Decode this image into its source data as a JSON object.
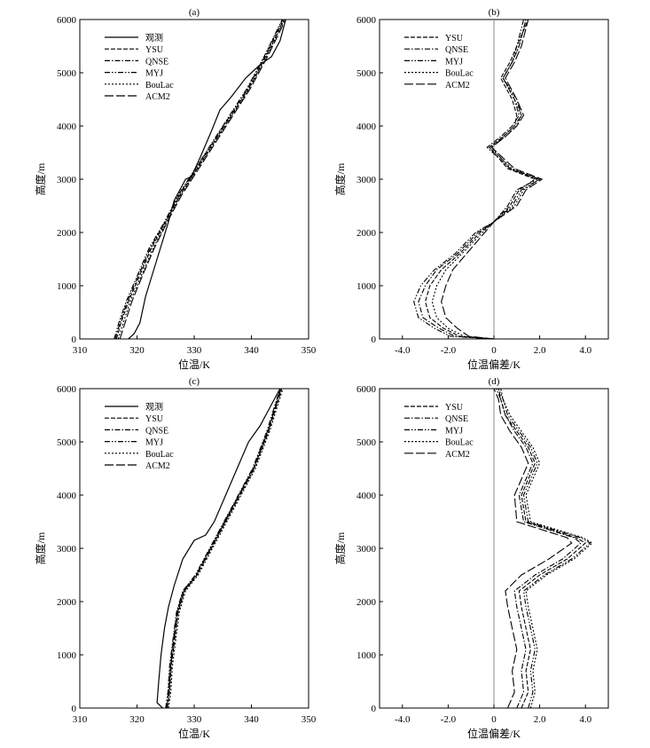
{
  "chart_data": [
    {
      "panel": "(a)",
      "type": "line",
      "xlabel": "位温/K",
      "ylabel": "高度/m",
      "xlim": [
        310,
        350
      ],
      "ylim": [
        0,
        6000
      ],
      "xticks": [
        "310",
        "320",
        "330",
        "340",
        "350"
      ],
      "yticks": [
        "0",
        "1000",
        "2000",
        "3000",
        "4000",
        "5000",
        "6000"
      ],
      "legend": "top-left",
      "series": [
        {
          "name": "观测",
          "style": "solid",
          "x": [
            318.5,
            319.5,
            320.5,
            321.5,
            323.5,
            325.5,
            326.5,
            328.0,
            328.5,
            329.5,
            331.0,
            333.0,
            334.5,
            336.5,
            339.0,
            341.5,
            343.5,
            345.0,
            346.0
          ],
          "y": [
            0,
            100,
            300,
            800,
            1500,
            2200,
            2600,
            2900,
            3000,
            3050,
            3400,
            3900,
            4300,
            4550,
            4900,
            5150,
            5300,
            5600,
            6000
          ]
        },
        {
          "name": "YSU",
          "style": "dashed",
          "x": [
            316.4,
            317.2,
            318.5,
            320.5,
            322.5,
            325.0,
            327.5,
            330.5,
            333.5,
            336.5,
            339.5,
            342.5,
            345.7
          ],
          "y": [
            0,
            300,
            700,
            1200,
            1700,
            2200,
            2700,
            3200,
            3700,
            4200,
            4700,
            5300,
            6000
          ]
        },
        {
          "name": "QNSE",
          "style": "dashdot",
          "x": [
            316.2,
            317.0,
            318.3,
            320.3,
            322.3,
            324.9,
            327.3,
            330.3,
            333.3,
            336.3,
            339.3,
            342.3,
            345.5
          ],
          "y": [
            0,
            300,
            700,
            1200,
            1700,
            2200,
            2700,
            3200,
            3700,
            4200,
            4700,
            5300,
            6000
          ]
        },
        {
          "name": "MYJ",
          "style": "dashdotdot",
          "x": [
            316.0,
            316.8,
            318.1,
            320.1,
            322.1,
            324.8,
            327.2,
            330.2,
            333.2,
            336.2,
            339.2,
            342.2,
            345.4
          ],
          "y": [
            0,
            300,
            700,
            1200,
            1700,
            2200,
            2700,
            3200,
            3700,
            4200,
            4700,
            5300,
            6000
          ]
        },
        {
          "name": "BouLac",
          "style": "dotted",
          "x": [
            316.7,
            317.6,
            318.8,
            320.8,
            322.8,
            325.2,
            327.6,
            330.6,
            333.6,
            336.6,
            339.6,
            342.6,
            345.8
          ],
          "y": [
            0,
            300,
            700,
            1200,
            1700,
            2200,
            2700,
            3200,
            3700,
            4200,
            4700,
            5300,
            6000
          ]
        },
        {
          "name": "ACM2",
          "style": "longdash",
          "x": [
            317.0,
            317.9,
            319.1,
            321.0,
            323.0,
            325.3,
            327.8,
            330.8,
            333.8,
            336.8,
            339.8,
            342.8,
            346.0
          ],
          "y": [
            0,
            300,
            700,
            1200,
            1700,
            2200,
            2700,
            3200,
            3700,
            4200,
            4700,
            5300,
            6000
          ]
        }
      ]
    },
    {
      "panel": "(b)",
      "type": "line",
      "xlabel": "位温偏差/K",
      "ylabel": "高度/m",
      "xlim": [
        -5,
        5
      ],
      "ylim": [
        0,
        6000
      ],
      "xticks": [
        "-4.0",
        "-2.0",
        "0",
        "2.0",
        "4.0"
      ],
      "xtick_values": [
        -4,
        -2,
        0,
        2,
        4
      ],
      "yticks": [
        "0",
        "1000",
        "2000",
        "3000",
        "4000",
        "5000",
        "6000"
      ],
      "zero_line": true,
      "legend": "top-left",
      "series": [
        {
          "name": "YSU",
          "style": "dashed",
          "x": [
            0.0,
            -1.5,
            -2.2,
            -2.8,
            -3.0,
            -2.8,
            -2.3,
            -1.5,
            -0.6,
            0.0,
            0.7,
            1.1,
            1.8,
            0.6,
            -0.2,
            0.4,
            0.9,
            1.0,
            0.8,
            0.3,
            0.7,
            1.0,
            1.5
          ],
          "y": [
            0,
            50,
            200,
            400,
            700,
            1000,
            1300,
            1600,
            2000,
            2200,
            2500,
            2800,
            3000,
            3200,
            3600,
            3800,
            4000,
            4200,
            4500,
            4900,
            5200,
            5500,
            6000
          ]
        },
        {
          "name": "QNSE",
          "style": "dashdot",
          "x": [
            0.0,
            -1.7,
            -2.4,
            -3.1,
            -3.3,
            -3.0,
            -2.5,
            -1.6,
            -0.7,
            0.0,
            0.6,
            1.0,
            1.9,
            0.7,
            -0.3,
            0.3,
            0.8,
            1.1,
            0.9,
            0.4,
            0.8,
            1.1,
            1.4
          ],
          "y": [
            0,
            50,
            200,
            400,
            700,
            1000,
            1300,
            1600,
            2000,
            2200,
            2500,
            2800,
            3000,
            3200,
            3600,
            3800,
            4000,
            4200,
            4500,
            4900,
            5200,
            5500,
            6000
          ]
        },
        {
          "name": "MYJ",
          "style": "dashdotdot",
          "x": [
            0.0,
            -1.9,
            -2.6,
            -3.3,
            -3.5,
            -3.2,
            -2.6,
            -1.7,
            -0.8,
            0.0,
            0.8,
            1.2,
            2.0,
            0.7,
            -0.1,
            0.4,
            0.9,
            1.2,
            1.0,
            0.4,
            0.8,
            1.0,
            1.3
          ],
          "y": [
            0,
            50,
            200,
            400,
            700,
            1000,
            1300,
            1600,
            2000,
            2200,
            2500,
            2800,
            3000,
            3200,
            3600,
            3800,
            4000,
            4200,
            4500,
            4900,
            5200,
            5500,
            6000
          ]
        },
        {
          "name": "BouLac",
          "style": "dotted",
          "x": [
            0.0,
            -1.3,
            -2.0,
            -2.5,
            -2.7,
            -2.5,
            -2.1,
            -1.4,
            -0.5,
            0.0,
            0.9,
            1.3,
            2.0,
            0.8,
            -0.2,
            0.5,
            1.0,
            1.2,
            0.9,
            0.4,
            0.8,
            1.1,
            1.4
          ],
          "y": [
            0,
            50,
            200,
            400,
            700,
            1000,
            1300,
            1600,
            2000,
            2200,
            2500,
            2800,
            3000,
            3200,
            3600,
            3800,
            4000,
            4200,
            4500,
            4900,
            5200,
            5500,
            6000
          ]
        },
        {
          "name": "ACM2",
          "style": "longdash",
          "x": [
            0.0,
            -1.1,
            -1.6,
            -2.1,
            -2.3,
            -2.1,
            -1.8,
            -1.2,
            -0.4,
            0.0,
            1.0,
            1.4,
            2.1,
            0.9,
            -0.1,
            0.5,
            1.0,
            1.3,
            1.0,
            0.5,
            0.9,
            1.2,
            1.5
          ],
          "y": [
            0,
            50,
            200,
            400,
            700,
            1000,
            1300,
            1600,
            2000,
            2200,
            2500,
            2800,
            3000,
            3200,
            3600,
            3800,
            4000,
            4200,
            4500,
            4900,
            5200,
            5500,
            6000
          ]
        }
      ]
    },
    {
      "panel": "(c)",
      "type": "line",
      "xlabel": "位温/K",
      "ylabel": "高度/m",
      "xlim": [
        310,
        350
      ],
      "ylim": [
        0,
        6000
      ],
      "xticks": [
        "310",
        "320",
        "330",
        "340",
        "350"
      ],
      "yticks": [
        "0",
        "1000",
        "2000",
        "3000",
        "4000",
        "5000",
        "6000"
      ],
      "legend": "top-left",
      "series": [
        {
          "name": "观测",
          "style": "solid",
          "x": [
            324.5,
            323.5,
            323.8,
            324.2,
            324.8,
            325.5,
            326.5,
            328.0,
            330.0,
            332.0,
            333.5,
            335.5,
            337.5,
            339.5,
            341.5,
            343.5,
            345.0
          ],
          "y": [
            0,
            100,
            500,
            1000,
            1500,
            1900,
            2300,
            2800,
            3150,
            3250,
            3500,
            4000,
            4500,
            5000,
            5300,
            5700,
            6000
          ]
        },
        {
          "name": "YSU",
          "style": "dashed",
          "x": [
            325.3,
            325.7,
            326.0,
            326.6,
            327.2,
            328.3,
            330.5,
            333.0,
            335.5,
            338.0,
            340.5,
            343.0,
            345.3
          ],
          "y": [
            0,
            300,
            800,
            1300,
            1800,
            2200,
            2500,
            3000,
            3500,
            4000,
            4500,
            5200,
            6000
          ]
        },
        {
          "name": "QNSE",
          "style": "dashdot",
          "x": [
            325.1,
            325.5,
            325.8,
            326.4,
            327.0,
            328.1,
            330.3,
            332.8,
            335.3,
            337.8,
            340.3,
            342.8,
            345.1
          ],
          "y": [
            0,
            300,
            800,
            1300,
            1800,
            2200,
            2500,
            3000,
            3500,
            4000,
            4500,
            5200,
            6000
          ]
        },
        {
          "name": "MYJ",
          "style": "dashdotdot",
          "x": [
            325.0,
            325.4,
            325.7,
            326.3,
            326.9,
            328.0,
            330.2,
            332.7,
            335.2,
            337.7,
            340.2,
            342.7,
            345.0
          ],
          "y": [
            0,
            300,
            800,
            1300,
            1800,
            2200,
            2500,
            3000,
            3500,
            4000,
            4500,
            5200,
            6000
          ]
        },
        {
          "name": "BouLac",
          "style": "dotted",
          "x": [
            325.5,
            325.9,
            326.2,
            326.8,
            327.4,
            328.5,
            330.7,
            333.2,
            335.7,
            338.2,
            340.7,
            343.2,
            345.5
          ],
          "y": [
            0,
            300,
            800,
            1300,
            1800,
            2200,
            2500,
            3000,
            3500,
            4000,
            4500,
            5200,
            6000
          ]
        },
        {
          "name": "ACM2",
          "style": "longdash",
          "x": [
            325.2,
            325.6,
            325.9,
            326.5,
            327.1,
            328.2,
            330.4,
            332.9,
            335.4,
            337.9,
            340.4,
            342.9,
            345.2
          ],
          "y": [
            0,
            300,
            800,
            1300,
            1800,
            2200,
            2500,
            3000,
            3500,
            4000,
            4500,
            5200,
            6000
          ]
        }
      ]
    },
    {
      "panel": "(d)",
      "type": "line",
      "xlabel": "位温偏差/K",
      "ylabel": "高度/m",
      "xlim": [
        -5,
        5
      ],
      "ylim": [
        0,
        6000
      ],
      "xticks": [
        "-4.0",
        "-2.0",
        "0",
        "2.0",
        "4.0"
      ],
      "xtick_values": [
        -4,
        -2,
        0,
        2,
        4
      ],
      "yticks": [
        "0",
        "1000",
        "2000",
        "3000",
        "4000",
        "5000",
        "6000"
      ],
      "zero_line": true,
      "legend": "top-left",
      "series": [
        {
          "name": "YSU",
          "style": "dashed",
          "x": [
            1.2,
            1.5,
            1.4,
            1.6,
            1.4,
            1.2,
            1.1,
            2.0,
            3.2,
            4.0,
            3.6,
            1.4,
            1.2,
            1.5,
            1.8,
            1.5,
            1.0,
            0.5,
            0.3,
            0.2
          ],
          "y": [
            0,
            300,
            700,
            1100,
            1500,
            1900,
            2200,
            2500,
            2800,
            3100,
            3200,
            3500,
            4000,
            4300,
            4600,
            4900,
            5200,
            5500,
            5800,
            6000
          ]
        },
        {
          "name": "QNSE",
          "style": "dashdot",
          "x": [
            1.0,
            1.3,
            1.2,
            1.4,
            1.2,
            1.0,
            0.9,
            1.8,
            3.0,
            3.8,
            3.5,
            1.3,
            1.1,
            1.4,
            1.7,
            1.4,
            0.9,
            0.5,
            0.3,
            0.1
          ],
          "y": [
            0,
            300,
            700,
            1100,
            1500,
            1900,
            2200,
            2500,
            2800,
            3100,
            3200,
            3500,
            4000,
            4300,
            4600,
            4900,
            5200,
            5500,
            5800,
            6000
          ]
        },
        {
          "name": "MYJ",
          "style": "dashdotdot",
          "x": [
            1.5,
            1.7,
            1.6,
            1.8,
            1.6,
            1.4,
            1.3,
            2.2,
            3.4,
            4.2,
            3.8,
            1.5,
            1.3,
            1.6,
            1.9,
            1.6,
            1.1,
            0.6,
            0.4,
            0.2
          ],
          "y": [
            0,
            300,
            700,
            1100,
            1500,
            1900,
            2200,
            2500,
            2800,
            3100,
            3200,
            3500,
            4000,
            4300,
            4600,
            4900,
            5200,
            5500,
            5800,
            6000
          ]
        },
        {
          "name": "BouLac",
          "style": "dotted",
          "x": [
            1.6,
            1.8,
            1.7,
            1.9,
            1.7,
            1.5,
            1.4,
            2.3,
            3.5,
            4.3,
            3.9,
            1.6,
            1.4,
            1.7,
            2.0,
            1.7,
            1.2,
            0.7,
            0.4,
            0.3
          ],
          "y": [
            0,
            300,
            700,
            1100,
            1500,
            1900,
            2200,
            2500,
            2800,
            3100,
            3200,
            3500,
            4000,
            4300,
            4600,
            4900,
            5200,
            5500,
            5800,
            6000
          ]
        },
        {
          "name": "ACM2",
          "style": "longdash",
          "x": [
            0.6,
            0.9,
            0.8,
            1.0,
            0.8,
            0.6,
            0.5,
            1.2,
            2.4,
            3.4,
            3.2,
            1.0,
            0.9,
            1.2,
            1.5,
            1.2,
            0.7,
            0.3,
            0.2,
            0.0
          ],
          "y": [
            0,
            300,
            700,
            1100,
            1500,
            1900,
            2200,
            2500,
            2800,
            3100,
            3200,
            3500,
            4000,
            4300,
            4600,
            4900,
            5200,
            5500,
            5800,
            6000
          ]
        }
      ]
    }
  ]
}
